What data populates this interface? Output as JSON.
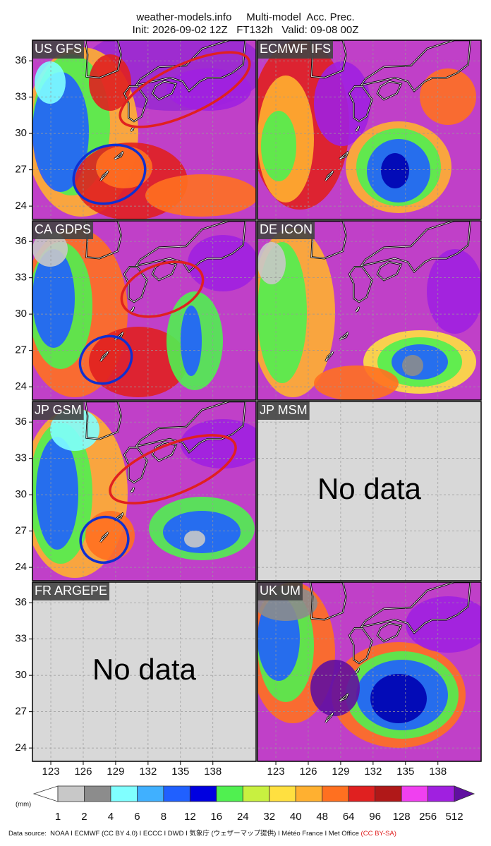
{
  "header": {
    "title": "weather-models.info     Multi-model  Acc. Prec.",
    "subtitle": "Init: 2026-09-02 12Z   FT132h   Valid: 09-08 00Z"
  },
  "map": {
    "xlim": [
      121.3,
      142
    ],
    "ylim": [
      22.9,
      37.7
    ],
    "xticks": [
      123,
      126,
      129,
      132,
      135,
      138
    ],
    "yticks": [
      36,
      33,
      30,
      27,
      24
    ]
  },
  "panels": [
    {
      "label": "US GFS"
    },
    {
      "label": "ECMWF IFS"
    },
    {
      "label": "CA GDPS"
    },
    {
      "label": "DE ICON"
    },
    {
      "label": "JP GSM"
    },
    {
      "label": "JP MSM",
      "message": "No data"
    },
    {
      "label": "FR ARGEPE",
      "message": "No data"
    },
    {
      "label": "UK UM"
    }
  ],
  "colorbar": {
    "unit": "(mm)",
    "levels": [
      1,
      2,
      4,
      6,
      8,
      12,
      16,
      24,
      32,
      40,
      48,
      64,
      96,
      128,
      256,
      512
    ],
    "colors": [
      "#ffffff",
      "#c8c8c8",
      "#8c8c8c",
      "#80ffff",
      "#40b0ff",
      "#2060ff",
      "#0000e0",
      "#50f050",
      "#c8f040",
      "#ffe040",
      "#ffb030",
      "#ff7020",
      "#e02020",
      "#b01818",
      "#f040f0",
      "#a020e0",
      "#6010a0"
    ]
  },
  "footer": {
    "source": "Data source:  NOAA I ECMWF (CC BY 4.0) I ECCC I DWD I 気象庁 (ウェザーマップ提供) I Météo France I Met Office ",
    "license": "(CC BY-SA)"
  }
}
